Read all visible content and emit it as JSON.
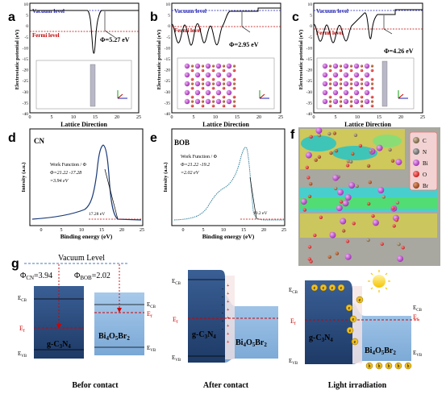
{
  "panels": {
    "a": {
      "letter": "a",
      "vacuum": "Vacuum level",
      "fermi": "Fermi level",
      "phi": "Φ=5.27 eV",
      "ylabel": "Electrostatic potential (eV)",
      "xlabel": "Lattice Direction",
      "yticks": [
        "10",
        "5",
        "0",
        "-5",
        "-10",
        "-15",
        "-20",
        "-25",
        "-30",
        "-35",
        "-40"
      ],
      "xticks": [
        "0",
        "5",
        "10",
        "15",
        "20",
        "25"
      ]
    },
    "b": {
      "letter": "b",
      "vacuum": "Vacuum level",
      "fermi": "Fermi level",
      "phi": "Φ=2.95 eV",
      "ylabel": "Electrostatic potential (eV)",
      "xlabel": "Lattice Direction",
      "yticks": [
        "10",
        "5",
        "0",
        "-5",
        "-10",
        "-15",
        "-20",
        "-25",
        "-30",
        "-35",
        "-40"
      ],
      "xticks": [
        "0",
        "5",
        "10",
        "15",
        "20",
        "25"
      ]
    },
    "c": {
      "letter": "c",
      "vacuum": "Vacuum level",
      "fermi": "Fermi level",
      "phi": "Φ=4.26 eV",
      "ylabel": "Electrostatic potential (eV)",
      "xlabel": "Lattice Direction",
      "yticks": [
        "10",
        "5",
        "0",
        "-5",
        "-10",
        "-15",
        "-20",
        "-25",
        "-30",
        "-35",
        "-40"
      ],
      "xticks": [
        "0",
        "5",
        "10",
        "15",
        "20",
        "25"
      ]
    },
    "d": {
      "letter": "d",
      "title": "CN",
      "wf_title": "Work Function / Φ",
      "wf_eq": "Φ=21.22 -17.28",
      "wf_val": "=3.94 eV",
      "edge": "17.28 eV",
      "ylabel": "Intesity (a.u.)",
      "xlabel": "Binding energy (eV)",
      "xticks": [
        "0",
        "5",
        "10",
        "15",
        "20",
        "25"
      ]
    },
    "e": {
      "letter": "e",
      "title": "BOB",
      "wf_title": "Work Function / Φ",
      "wf_eq": "Φ=21.22 -19.2",
      "wf_val": "=2.02 eV",
      "edge": "19.2 eV",
      "ylabel": "Intesity (a.u.)",
      "xlabel": "Binding energy (eV)",
      "xticks": [
        "0",
        "5",
        "10",
        "15",
        "20",
        "25"
      ]
    },
    "f": {
      "letter": "f",
      "legend": [
        "C",
        "N",
        "Bi",
        "O",
        "Br"
      ]
    },
    "g": {
      "letter": "g",
      "vacuum_level": "Vacuum Level",
      "phi_cn": "Φ",
      "phi_cn_sub": "CN",
      "phi_cn_val": "=3.94",
      "phi_bob": "Φ",
      "phi_bob_sub": "BOB",
      "phi_bob_val": "=2.02",
      "ecb": "E",
      "ecb_sub": "CB",
      "ef": "E",
      "ef_sub": "f",
      "evb": "E",
      "evb_sub": "VB",
      "gcn": "g-C",
      "gcn_sub1": "3",
      "gcn_mid": "N",
      "gcn_sub2": "4",
      "bob": "Bi",
      "bob_sub1": "4",
      "bob_mid1": "O",
      "bob_sub2": "5",
      "bob_mid2": "Br",
      "bob_sub3": "2",
      "electron": "e",
      "hole": "h",
      "captions": [
        "Befor contact",
        "After contact",
        "Light irradiation"
      ]
    }
  },
  "colors": {
    "vacuum": "#1f1fb0",
    "fermi": "#c00000",
    "cn_band": "#2c4b7a",
    "bob_band": "#8fb8e0",
    "electron": "#f0c020",
    "hole": "#f0c020"
  }
}
